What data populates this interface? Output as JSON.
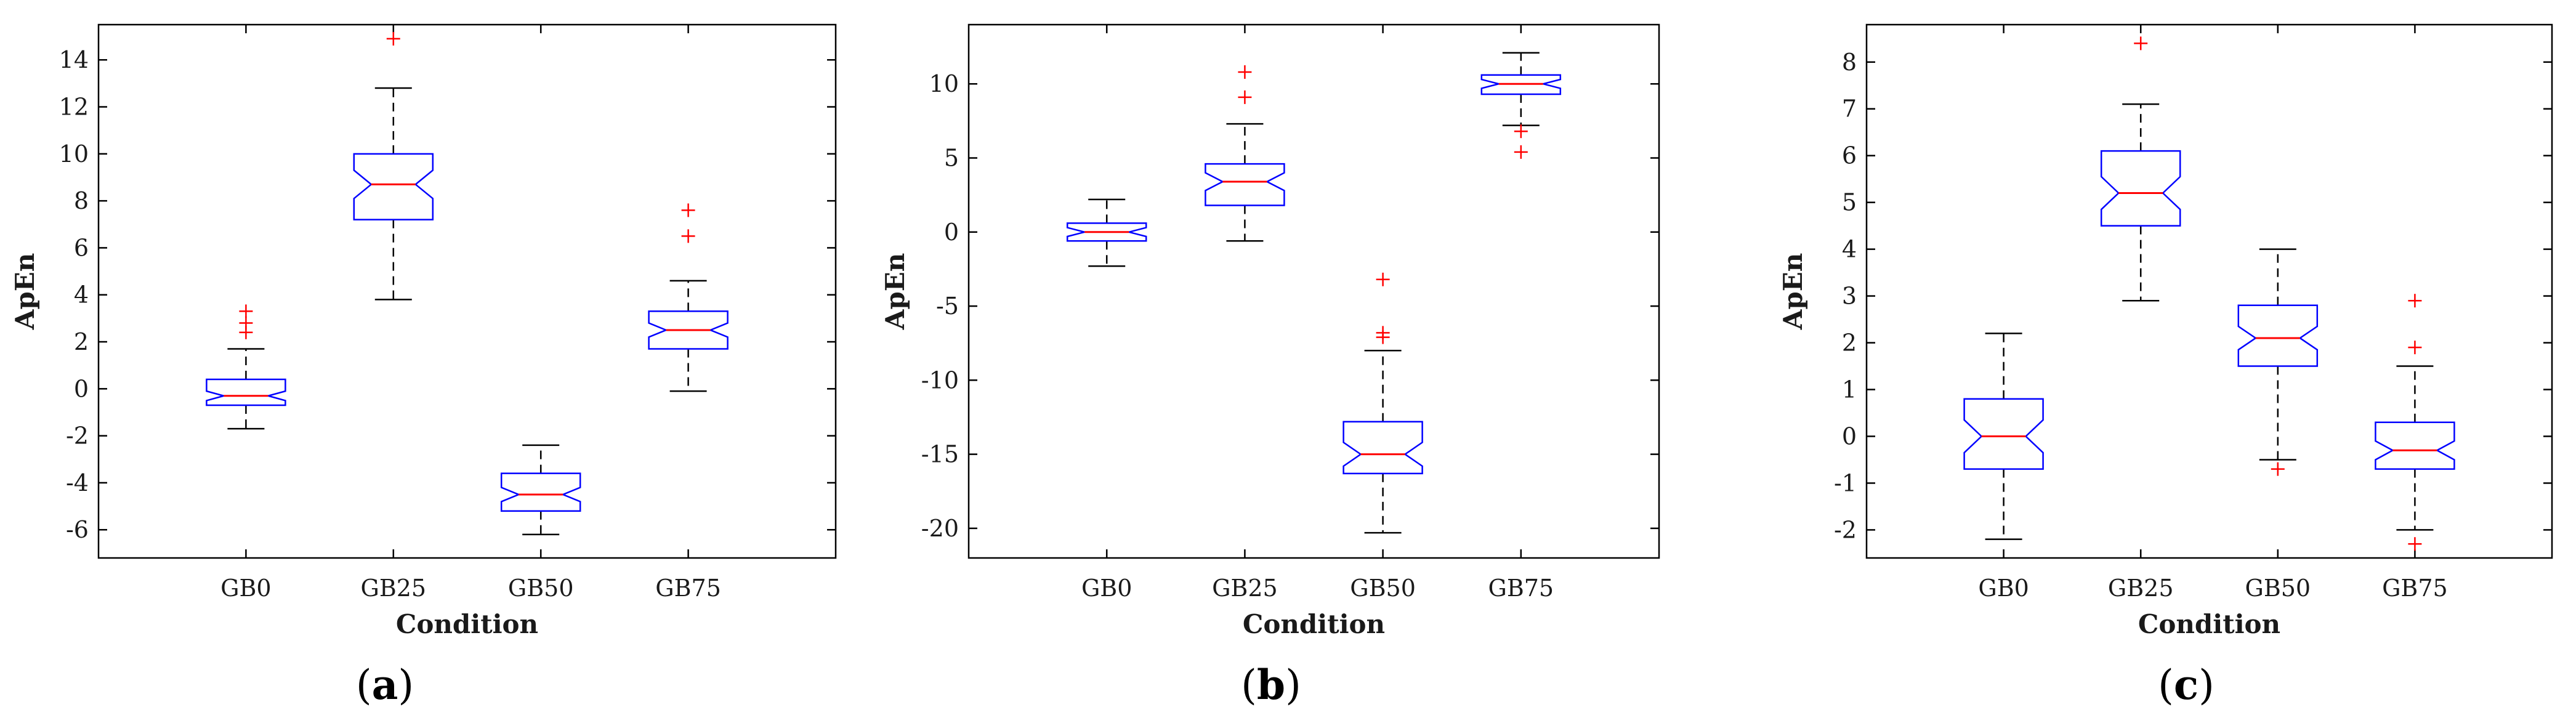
{
  "colors": {
    "box": "#0000ff",
    "median": "#ff0000",
    "whisker": "#000000",
    "outlier": "#ff0000",
    "frame": "#000000"
  },
  "chart_data": [
    {
      "type": "box",
      "panel_label": "a",
      "xlabel": "Condition",
      "ylabel": "ApEn",
      "ylim": [
        -7.2,
        15.5
      ],
      "yticks": [
        -6,
        -4,
        -2,
        0,
        2,
        4,
        6,
        8,
        10,
        12,
        14
      ],
      "categories": [
        "GB0",
        "GB25",
        "GB50",
        "GB75"
      ],
      "notched": true,
      "boxes": [
        {
          "category": "GB0",
          "whisker_low": -1.7,
          "q1": -0.7,
          "median": -0.3,
          "q3": 0.4,
          "whisker_high": 1.7,
          "notch": [
            -0.5,
            -0.1
          ],
          "outliers": [
            2.4,
            2.8,
            3.3
          ]
        },
        {
          "category": "GB25",
          "whisker_low": 3.8,
          "q1": 7.2,
          "median": 8.7,
          "q3": 10.0,
          "whisker_high": 12.8,
          "notch": [
            8.1,
            9.3
          ],
          "outliers": [
            14.9
          ]
        },
        {
          "category": "GB50",
          "whisker_low": -6.2,
          "q1": -5.2,
          "median": -4.5,
          "q3": -3.6,
          "whisker_high": -2.4,
          "notch": [
            -4.8,
            -4.2
          ],
          "outliers": []
        },
        {
          "category": "GB75",
          "whisker_low": -0.1,
          "q1": 1.7,
          "median": 2.5,
          "q3": 3.3,
          "whisker_high": 4.6,
          "notch": [
            2.2,
            2.8
          ],
          "outliers": [
            6.5,
            7.6
          ]
        }
      ]
    },
    {
      "type": "box",
      "panel_label": "b",
      "xlabel": "Condition",
      "ylabel": "ApEn",
      "ylim": [
        -22,
        14
      ],
      "yticks": [
        -20,
        -15,
        -10,
        -5,
        0,
        5,
        10
      ],
      "categories": [
        "GB0",
        "GB25",
        "GB50",
        "GB75"
      ],
      "notched": true,
      "boxes": [
        {
          "category": "GB0",
          "whisker_low": -2.3,
          "q1": -0.6,
          "median": 0.0,
          "q3": 0.6,
          "whisker_high": 2.2,
          "notch": [
            -0.3,
            0.3
          ],
          "outliers": []
        },
        {
          "category": "GB25",
          "whisker_low": -0.6,
          "q1": 1.8,
          "median": 3.4,
          "q3": 4.6,
          "whisker_high": 7.3,
          "notch": [
            2.8,
            4.0
          ],
          "outliers": [
            9.1,
            10.8
          ]
        },
        {
          "category": "GB50",
          "whisker_low": -20.3,
          "q1": -16.3,
          "median": -15.0,
          "q3": -12.8,
          "whisker_high": -8.0,
          "notch": [
            -15.8,
            -14.2
          ],
          "outliers": [
            -7.1,
            -6.8,
            -3.2
          ]
        },
        {
          "category": "GB75",
          "whisker_low": 7.2,
          "q1": 9.3,
          "median": 10.0,
          "q3": 10.6,
          "whisker_high": 12.1,
          "notch": [
            9.7,
            10.3
          ],
          "outliers": [
            6.8,
            5.4
          ]
        }
      ]
    },
    {
      "type": "box",
      "panel_label": "c",
      "xlabel": "Condition",
      "ylabel": "ApEn",
      "ylim": [
        -2.6,
        8.8
      ],
      "yticks": [
        -2,
        -1,
        0,
        1,
        2,
        3,
        4,
        5,
        6,
        7,
        8
      ],
      "categories": [
        "GB0",
        "GB25",
        "GB50",
        "GB75"
      ],
      "notched": true,
      "boxes": [
        {
          "category": "GB0",
          "whisker_low": -2.2,
          "q1": -0.7,
          "median": 0.0,
          "q3": 0.8,
          "whisker_high": 2.2,
          "notch": [
            -0.35,
            0.35
          ],
          "outliers": []
        },
        {
          "category": "GB25",
          "whisker_low": 2.9,
          "q1": 4.5,
          "median": 5.2,
          "q3": 6.1,
          "whisker_high": 7.1,
          "notch": [
            4.85,
            5.55
          ],
          "outliers": [
            8.4
          ]
        },
        {
          "category": "GB50",
          "whisker_low": -0.5,
          "q1": 1.5,
          "median": 2.1,
          "q3": 2.8,
          "whisker_high": 4.0,
          "notch": [
            1.85,
            2.35
          ],
          "outliers": [
            -0.7
          ]
        },
        {
          "category": "GB75",
          "whisker_low": -2.0,
          "q1": -0.7,
          "median": -0.3,
          "q3": 0.3,
          "whisker_high": 1.5,
          "notch": [
            -0.5,
            -0.1
          ],
          "outliers": [
            1.9,
            2.9,
            -2.3
          ]
        }
      ]
    }
  ]
}
